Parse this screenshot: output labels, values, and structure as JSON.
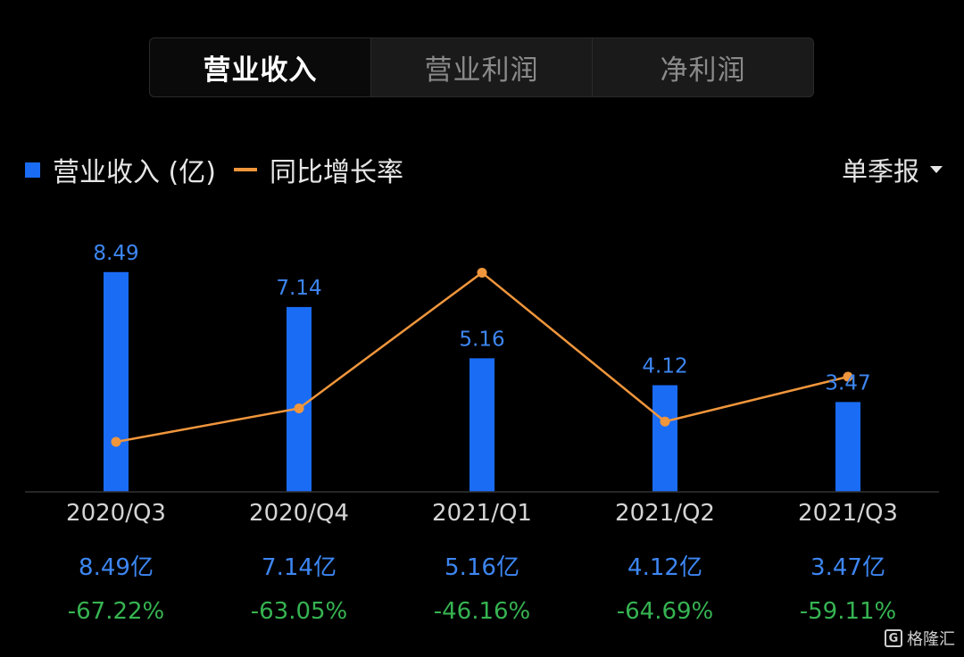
{
  "tabs": [
    {
      "label": "营业收入",
      "active": true
    },
    {
      "label": "营业利润",
      "active": false
    },
    {
      "label": "净利润",
      "active": false
    }
  ],
  "legend": {
    "bar_label": "营业收入 (亿)",
    "line_label": "同比增长率"
  },
  "period_selector": "单季报",
  "colors": {
    "bar": "#1a6cf5",
    "line": "#f0963c",
    "value_text": "#3d86f2",
    "growth_text": "#36b352",
    "bar_label_text": "#3d86f2"
  },
  "chart_data": {
    "type": "bar+line",
    "categories": [
      "2020/Q3",
      "2020/Q4",
      "2021/Q1",
      "2021/Q2",
      "2021/Q3"
    ],
    "series": [
      {
        "name": "营业收入 (亿)",
        "type": "bar",
        "values": [
          8.49,
          7.14,
          5.16,
          4.12,
          3.47
        ]
      },
      {
        "name": "同比增长率",
        "type": "line",
        "values": [
          -67.22,
          -63.05,
          -46.16,
          -64.69,
          -59.11
        ]
      }
    ],
    "bar_labels": [
      "8.49",
      "7.14",
      "5.16",
      "4.12",
      "3.47"
    ],
    "value_labels": [
      "8.49亿",
      "7.14亿",
      "5.16亿",
      "4.12亿",
      "3.47亿"
    ],
    "growth_labels": [
      "-67.22%",
      "-63.05%",
      "-46.16%",
      "-64.69%",
      "-59.11%"
    ]
  },
  "watermark": {
    "logo": "G",
    "text": "格隆汇"
  }
}
